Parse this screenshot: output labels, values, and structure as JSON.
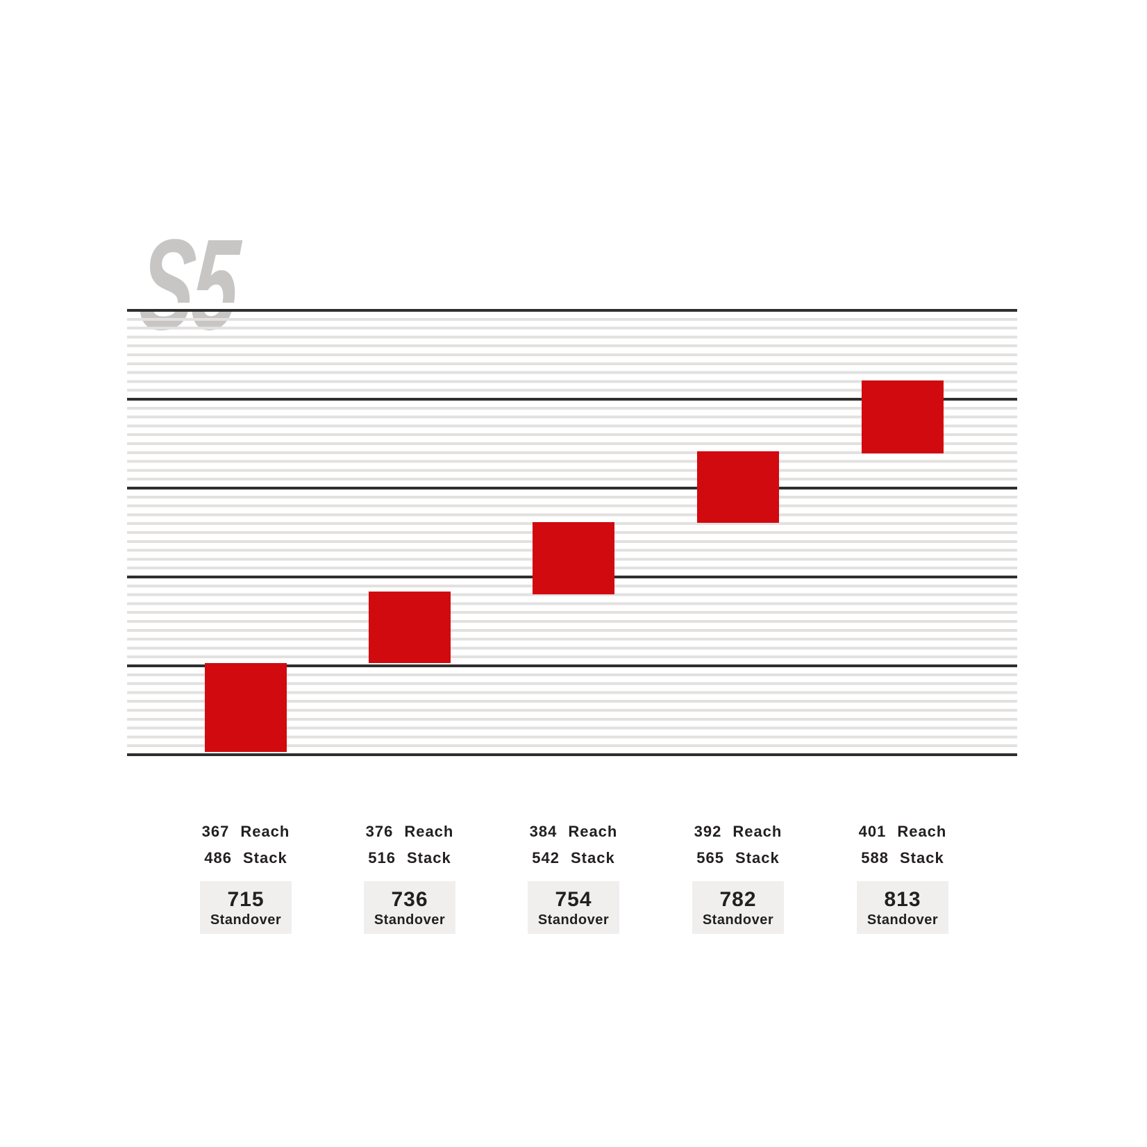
{
  "logo": {
    "text": "S5"
  },
  "colors": {
    "accent_red": "#d10a10",
    "stripe_light": "#e2e1e0",
    "stripe_dark": "#2e2e2e",
    "logo_gray": "#c7c6c5",
    "text_dark": "#231f20",
    "standover_box_bg": "#f0efee"
  },
  "labels": {
    "reach": "Reach",
    "stack": "Stack",
    "standover": "Standover"
  },
  "columns": [
    {
      "reach": "367",
      "stack": "486",
      "standover": "715"
    },
    {
      "reach": "376",
      "stack": "516",
      "standover": "736"
    },
    {
      "reach": "384",
      "stack": "542",
      "standover": "754"
    },
    {
      "reach": "392",
      "stack": "565",
      "standover": "782"
    },
    {
      "reach": "401",
      "stack": "588",
      "standover": "813"
    }
  ],
  "chart_data": {
    "type": "scatter",
    "title": "S5",
    "x": [
      1,
      2,
      3,
      4,
      5
    ],
    "series": [
      {
        "name": "Reach",
        "values": [
          367,
          376,
          384,
          392,
          401
        ]
      },
      {
        "name": "Stack",
        "values": [
          486,
          516,
          542,
          565,
          588
        ]
      },
      {
        "name": "Standover",
        "values": [
          715,
          736,
          754,
          782,
          813
        ]
      }
    ],
    "marker": "red-square-stair-step",
    "grid": "horizontal ruled lines, heavy line every 10th rule",
    "legend": "none",
    "annotations": "each size column lists Reach, Stack and a boxed Standover value"
  }
}
